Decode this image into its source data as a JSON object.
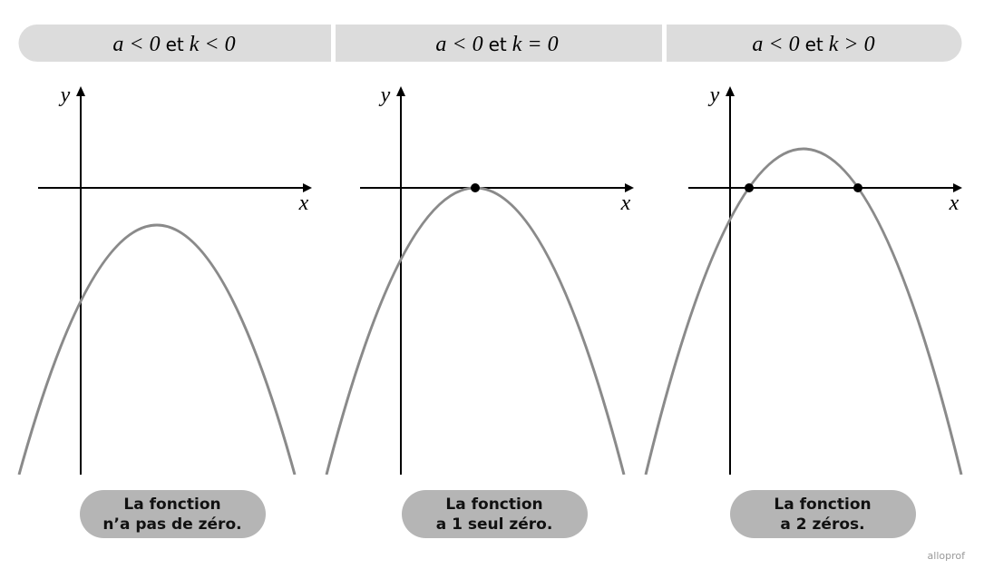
{
  "panels": [
    {
      "condition_a": "a < 0",
      "connector": "et",
      "condition_k": "k < 0",
      "y_label": "y",
      "x_label": "x",
      "caption_line1": "La fonction",
      "caption_line2": "n’a pas de zéro."
    },
    {
      "condition_a": "a < 0",
      "connector": "et",
      "condition_k": "k = 0",
      "y_label": "y",
      "x_label": "x",
      "caption_line1": "La fonction",
      "caption_line2": "a 1 seul zéro."
    },
    {
      "condition_a": "a < 0",
      "connector": "et",
      "condition_k": "k > 0",
      "y_label": "y",
      "x_label": "x",
      "caption_line1": "La fonction",
      "caption_line2": "a 2 zéros."
    }
  ],
  "logo": "alloprof"
}
